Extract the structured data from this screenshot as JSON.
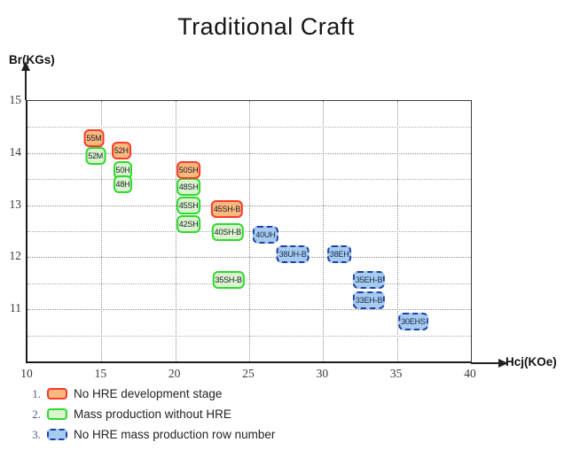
{
  "title": "Traditional Craft",
  "axes": {
    "x": {
      "label": "Hcj(KOe)",
      "min": 10,
      "max": 40,
      "ticks": [
        10,
        15,
        20,
        25,
        30,
        35,
        40
      ]
    },
    "y": {
      "label": "Br(KGs)",
      "min": 10,
      "max": 15,
      "ticks": [
        15,
        14,
        13,
        12,
        11
      ]
    }
  },
  "chart_data": {
    "type": "scatter",
    "title": "Traditional Craft",
    "xlabel": "Hcj(KOe)",
    "ylabel": "Br(KGs)",
    "xlim": [
      10,
      40
    ],
    "ylim": [
      10,
      15
    ],
    "grid": true,
    "gridlines": {
      "x": [
        15,
        20,
        25,
        30,
        35
      ],
      "y_major": [
        14,
        13,
        12,
        11
      ],
      "y_minor": [
        14.5,
        13.5,
        12.5,
        11.5,
        10.5
      ]
    },
    "series": [
      {
        "name": "No HRE development stage",
        "style": "red",
        "points": [
          {
            "label": "55M",
            "x": 14.5,
            "y": 14.28
          },
          {
            "label": "52H",
            "x": 16.35,
            "y": 14.05
          },
          {
            "label": "50SH",
            "x": 20.9,
            "y": 13.68
          },
          {
            "label": "45SH-B",
            "x": 23.5,
            "y": 12.92
          }
        ]
      },
      {
        "name": "Mass production without HRE",
        "style": "green",
        "points": [
          {
            "label": "52M",
            "x": 14.6,
            "y": 13.95
          },
          {
            "label": "50H",
            "x": 16.45,
            "y": 13.68
          },
          {
            "label": "48H",
            "x": 16.45,
            "y": 13.4
          },
          {
            "label": "48SH",
            "x": 20.9,
            "y": 13.35
          },
          {
            "label": "45SH",
            "x": 20.9,
            "y": 13.0
          },
          {
            "label": "42SH",
            "x": 20.9,
            "y": 12.63
          },
          {
            "label": "40SH-B",
            "x": 23.55,
            "y": 12.49
          },
          {
            "label": "35SH-B",
            "x": 23.6,
            "y": 11.56
          }
        ]
      },
      {
        "name": "No HRE mass production row number",
        "style": "blue",
        "points": [
          {
            "label": "40UH",
            "x": 26.1,
            "y": 12.44
          },
          {
            "label": "38UH-B",
            "x": 27.95,
            "y": 12.05
          },
          {
            "label": "38EH",
            "x": 31.1,
            "y": 12.05
          },
          {
            "label": "35EH-B",
            "x": 33.1,
            "y": 11.56
          },
          {
            "label": "33EH-B",
            "x": 33.1,
            "y": 11.18
          },
          {
            "label": "30EHS",
            "x": 36.1,
            "y": 10.76
          }
        ]
      }
    ]
  },
  "legend": {
    "position": "bottom-left",
    "items": [
      {
        "num": "1.",
        "swatch": "red",
        "label": "No HRE development stage"
      },
      {
        "num": "2.",
        "swatch": "green",
        "label": "Mass production without HRE"
      },
      {
        "num": "3.",
        "swatch": "blue",
        "label": "No HRE mass production row number"
      }
    ]
  },
  "colors": {
    "red_border": "#f93b2b",
    "red_fill": "#f9b87d",
    "green_border": "#2fd92f",
    "green_fill": "#d9f4cf",
    "blue_border": "#1f3fa8",
    "blue_fill": "#a6cbee",
    "gridline": "#8f8f8f",
    "axis": "#1c1c1c"
  }
}
